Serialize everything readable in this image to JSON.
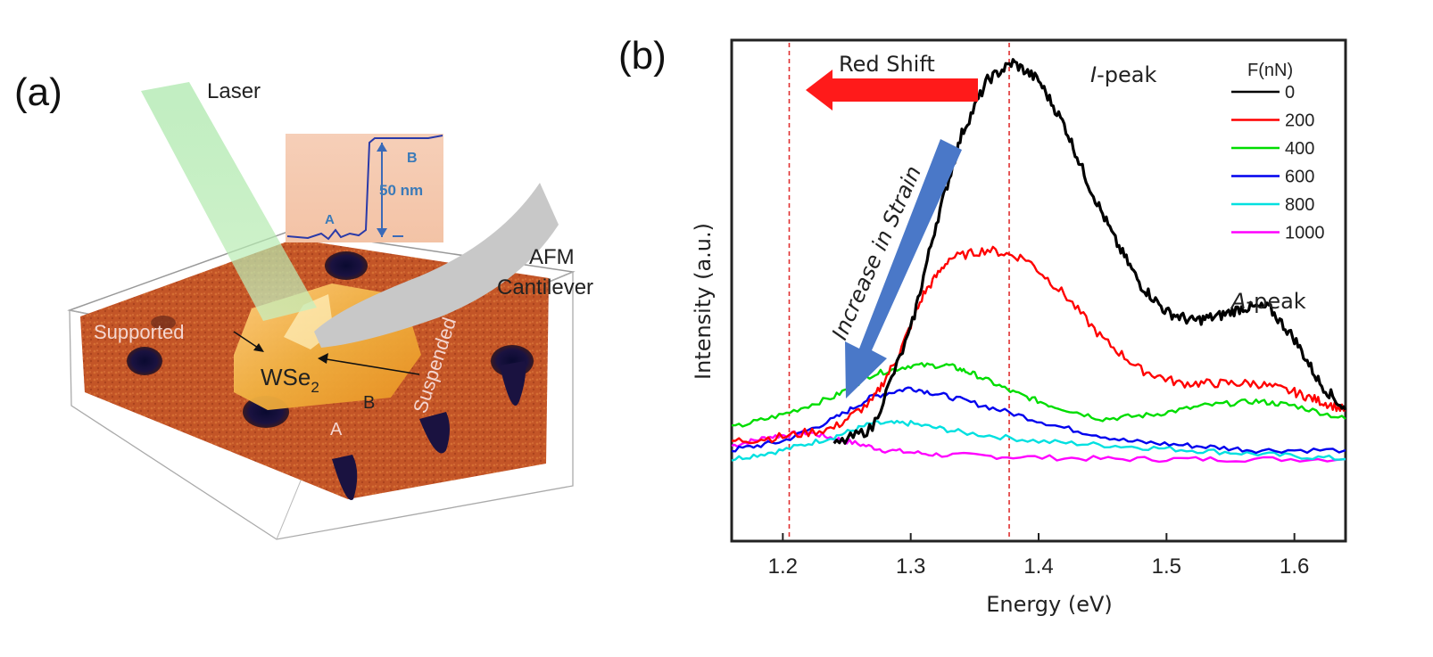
{
  "panel_a": {
    "label": "(a)",
    "laser_label": "Laser",
    "afm_label_line1": "AFM",
    "afm_label_line2": "Cantilever",
    "supported_label": "Supported",
    "suspended_label": "Suspended",
    "material_label": "WSe",
    "material_subscript": "2",
    "point_a": "A",
    "point_b": "B",
    "inset": {
      "point_a": "A",
      "point_b": "B",
      "height_label": "50 nm"
    }
  },
  "panel_b": {
    "label": "(b)",
    "red_shift_label": "Red Shift",
    "strain_label": "Increase in Strain",
    "i_peak_label": "I",
    "i_peak_suffix": "-peak",
    "a_peak_label": "A",
    "a_peak_suffix": "-peak"
  },
  "colors": {
    "series_0": "#000000",
    "series_200": "#ff0000",
    "series_400": "#00dd00",
    "series_600": "#0000ee",
    "series_800": "#00e0e0",
    "series_1000": "#ff00ff",
    "red_arrow": "#ff1a1a",
    "blue_arrow": "#4a78c8",
    "guide_line": "#e03030"
  },
  "chart_data": {
    "type": "line",
    "xlabel": "Energy (eV)",
    "ylabel": "Intensity (a.u.)",
    "xlim": [
      1.16,
      1.64
    ],
    "ylim": [
      0,
      1.0
    ],
    "xticks": [
      "1.2",
      "1.3",
      "1.4",
      "1.5",
      "1.6"
    ],
    "legend_title": "F(nN)",
    "legend_position": "top-right",
    "grid": false,
    "vertical_guides": [
      1.205,
      1.377
    ],
    "series": [
      {
        "name": "0",
        "points": [
          [
            1.24,
            0.12
          ],
          [
            1.27,
            0.16
          ],
          [
            1.3,
            0.38
          ],
          [
            1.32,
            0.62
          ],
          [
            1.34,
            0.82
          ],
          [
            1.36,
            0.94
          ],
          [
            1.38,
            0.98
          ],
          [
            1.4,
            0.94
          ],
          [
            1.42,
            0.84
          ],
          [
            1.44,
            0.7
          ],
          [
            1.46,
            0.58
          ],
          [
            1.48,
            0.48
          ],
          [
            1.5,
            0.42
          ],
          [
            1.52,
            0.4
          ],
          [
            1.54,
            0.41
          ],
          [
            1.56,
            0.43
          ],
          [
            1.58,
            0.43
          ],
          [
            1.6,
            0.36
          ],
          [
            1.62,
            0.26
          ],
          [
            1.64,
            0.2
          ]
        ]
      },
      {
        "name": "200",
        "points": [
          [
            1.16,
            0.13
          ],
          [
            1.2,
            0.14
          ],
          [
            1.24,
            0.16
          ],
          [
            1.27,
            0.22
          ],
          [
            1.29,
            0.32
          ],
          [
            1.31,
            0.46
          ],
          [
            1.33,
            0.54
          ],
          [
            1.36,
            0.56
          ],
          [
            1.39,
            0.54
          ],
          [
            1.42,
            0.46
          ],
          [
            1.45,
            0.36
          ],
          [
            1.48,
            0.29
          ],
          [
            1.51,
            0.26
          ],
          [
            1.54,
            0.26
          ],
          [
            1.57,
            0.26
          ],
          [
            1.6,
            0.24
          ],
          [
            1.62,
            0.22
          ],
          [
            1.64,
            0.2
          ]
        ]
      },
      {
        "name": "400",
        "points": [
          [
            1.16,
            0.16
          ],
          [
            1.2,
            0.19
          ],
          [
            1.24,
            0.23
          ],
          [
            1.27,
            0.28
          ],
          [
            1.3,
            0.3
          ],
          [
            1.33,
            0.3
          ],
          [
            1.35,
            0.28
          ],
          [
            1.38,
            0.24
          ],
          [
            1.41,
            0.21
          ],
          [
            1.45,
            0.18
          ],
          [
            1.49,
            0.19
          ],
          [
            1.53,
            0.21
          ],
          [
            1.57,
            0.22
          ],
          [
            1.6,
            0.21
          ],
          [
            1.64,
            0.18
          ]
        ]
      },
      {
        "name": "600",
        "points": [
          [
            1.16,
            0.11
          ],
          [
            1.2,
            0.13
          ],
          [
            1.24,
            0.18
          ],
          [
            1.27,
            0.23
          ],
          [
            1.3,
            0.25
          ],
          [
            1.33,
            0.23
          ],
          [
            1.37,
            0.2
          ],
          [
            1.42,
            0.16
          ],
          [
            1.47,
            0.13
          ],
          [
            1.52,
            0.12
          ],
          [
            1.57,
            0.11
          ],
          [
            1.64,
            0.11
          ]
        ]
      },
      {
        "name": "800",
        "points": [
          [
            1.16,
            0.09
          ],
          [
            1.2,
            0.11
          ],
          [
            1.24,
            0.14
          ],
          [
            1.27,
            0.17
          ],
          [
            1.3,
            0.17
          ],
          [
            1.34,
            0.15
          ],
          [
            1.4,
            0.13
          ],
          [
            1.46,
            0.12
          ],
          [
            1.52,
            0.11
          ],
          [
            1.58,
            0.1
          ],
          [
            1.64,
            0.09
          ]
        ]
      },
      {
        "name": "1000",
        "points": [
          [
            1.16,
            0.12
          ],
          [
            1.19,
            0.14
          ],
          [
            1.22,
            0.15
          ],
          [
            1.25,
            0.13
          ],
          [
            1.28,
            0.11
          ],
          [
            1.32,
            0.1
          ],
          [
            1.38,
            0.095
          ],
          [
            1.46,
            0.09
          ],
          [
            1.54,
            0.09
          ],
          [
            1.64,
            0.09
          ]
        ]
      }
    ]
  }
}
